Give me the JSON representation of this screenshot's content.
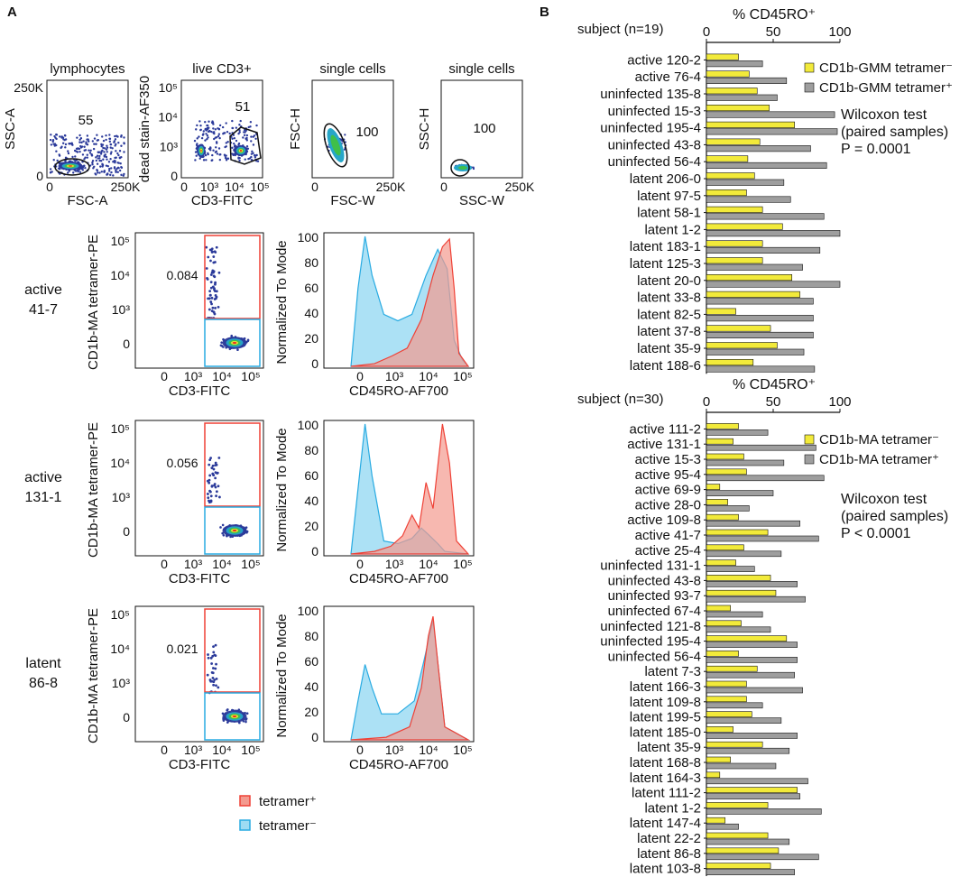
{
  "panel_labels": {
    "a": "A",
    "b": "B"
  },
  "colors": {
    "tetramer_pos": "#ef4136",
    "tetramer_neg": "#29abe2",
    "hist_pos_fill": "#f39a8f",
    "hist_neg_fill": "#9edcf3",
    "overlap_fill": "#b9aeb0",
    "bar_neg": "#f2ea3a",
    "bar_pos": "#9e9e9e",
    "density_low": "#2b3a9a",
    "density_high": "#e82a1f"
  },
  "gating": [
    {
      "title": "lymphocytes",
      "ylabel": "SSC-A",
      "xlabel": "FSC-A",
      "yticks": [
        "250K",
        "0"
      ],
      "xticks": [
        "0",
        "250K"
      ],
      "gate_value": "55"
    },
    {
      "title": "live CD3+",
      "ylabel": "dead stain-AF350",
      "xlabel": "CD3-FITC",
      "yticks": [
        "10⁵",
        "10⁴",
        "10³",
        "0"
      ],
      "xticks": [
        "0",
        "10³",
        "10⁴",
        "10⁵"
      ],
      "gate_value": "51"
    },
    {
      "title": "single cells",
      "ylabel": "FSC-H",
      "xlabel": "FSC-W",
      "yticks": [],
      "xticks": [
        "0",
        "250K"
      ],
      "gate_value": "100"
    },
    {
      "title": "single cells",
      "ylabel": "SSC-H",
      "xlabel": "SSC-W",
      "yticks": [],
      "xticks": [
        "0",
        "250K"
      ],
      "gate_value": "100"
    }
  ],
  "examples": [
    {
      "subject_line1": "active",
      "subject_line2": "41-7",
      "frequency": "0.084"
    },
    {
      "subject_line1": "active",
      "subject_line2": "131-1",
      "frequency": "0.056"
    },
    {
      "subject_line1": "latent",
      "subject_line2": "86-8",
      "frequency": "0.021"
    }
  ],
  "dot_axes": {
    "ylabel": "CD1b-MA tetramer-PE",
    "xlabel": "CD3-FITC",
    "yticks": [
      "10⁵",
      "10⁴",
      "10³",
      "0"
    ],
    "xticks": [
      "0",
      "10³",
      "10⁴",
      "10⁵"
    ]
  },
  "hist_axes": {
    "ylabel": "Normalized To Mode",
    "xlabel": "CD45RO-AF700",
    "yticks": [
      "100",
      "80",
      "60",
      "40",
      "20",
      "0"
    ],
    "xticks": [
      "0",
      "10³",
      "10⁴",
      "10⁵"
    ]
  },
  "legend_a": {
    "pos": "tetramer⁺",
    "neg": "tetramer⁻"
  },
  "chart_data": [
    {
      "type": "bar",
      "orientation": "horizontal",
      "title": "% CD45RO⁺",
      "subject_header": "subject (n=19)",
      "xlim": [
        0,
        100
      ],
      "xticks": [
        "0",
        "50",
        "100"
      ],
      "categories": [
        "active 120-2",
        "active 76-4",
        "uninfected 135-8",
        "uninfected 15-3",
        "uninfected 195-4",
        "uninfected 43-8",
        "uninfected 56-4",
        "latent 206-0",
        "latent 97-5",
        "latent 58-1",
        "latent 1-2",
        "latent 183-1",
        "latent 125-3",
        "latent 20-0",
        "latent 33-8",
        "latent 82-5",
        "latent 37-8",
        "latent 35-9",
        "latent 188-6"
      ],
      "series": [
        {
          "name": "CD1b-GMM tetramer⁻",
          "values": [
            24,
            32,
            38,
            47,
            66,
            40,
            31,
            36,
            30,
            42,
            57,
            42,
            42,
            64,
            70,
            22,
            48,
            53,
            35
          ]
        },
        {
          "name": "CD1b-GMM tetramer⁺",
          "values": [
            42,
            60,
            53,
            96,
            98,
            78,
            90,
            58,
            63,
            88,
            100,
            85,
            72,
            100,
            80,
            80,
            80,
            73,
            81
          ]
        }
      ],
      "stats_lines": [
        "Wilcoxon test",
        "(paired samples)",
        "P = 0.0001"
      ]
    },
    {
      "type": "bar",
      "orientation": "horizontal",
      "title": "% CD45RO⁺",
      "subject_header": "subject (n=30)",
      "xlim": [
        0,
        100
      ],
      "xticks": [
        "0",
        "50",
        "100"
      ],
      "categories": [
        "active 111-2",
        "active 131-1",
        "active 15-3",
        "active 95-4",
        "active 69-9",
        "active 28-0",
        "active 109-8",
        "active 41-7",
        "active 25-4",
        "uninfected 131-1",
        "uninfected 43-8",
        "uninfected 93-7",
        "uninfected 67-4",
        "uninfected 121-8",
        "uninfected 195-4",
        "uninfected 56-4",
        "latent 7-3",
        "latent 166-3",
        "latent 109-8",
        "latent 199-5",
        "latent 185-0",
        "latent 35-9",
        "latent 168-8",
        "latent 164-3",
        "latent 111-2",
        "latent 1-2",
        "latent 147-4",
        "latent 22-2",
        "latent 86-8",
        "latent 103-8"
      ],
      "series": [
        {
          "name": "CD1b-MA tetramer⁻",
          "values": [
            24,
            20,
            28,
            30,
            10,
            16,
            24,
            46,
            28,
            22,
            48,
            52,
            18,
            26,
            60,
            24,
            38,
            30,
            30,
            34,
            20,
            42,
            18,
            10,
            68,
            46,
            14,
            46,
            54,
            48
          ]
        },
        {
          "name": "CD1b-MA tetramer⁺",
          "values": [
            46,
            82,
            58,
            88,
            50,
            32,
            70,
            84,
            56,
            36,
            68,
            74,
            42,
            48,
            68,
            68,
            66,
            72,
            42,
            56,
            68,
            62,
            52,
            76,
            70,
            86,
            24,
            62,
            84,
            66
          ]
        }
      ],
      "stats_lines": [
        "Wilcoxon test",
        "(paired samples)",
        "P < 0.0001"
      ]
    }
  ]
}
